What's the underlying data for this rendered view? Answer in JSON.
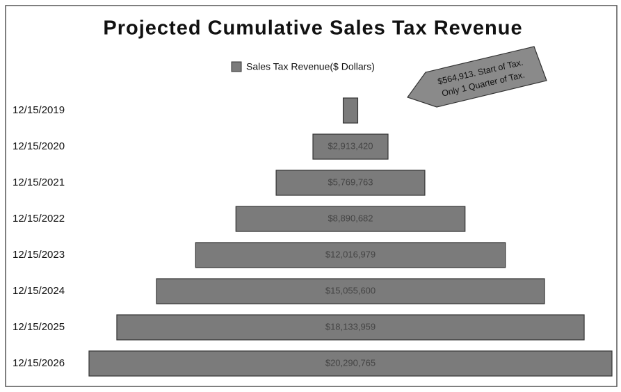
{
  "chart_data": {
    "type": "funnel",
    "title": "Projected Cumulative Sales Tax Revenue",
    "categories": [
      "12/15/2019",
      "12/15/2020",
      "12/15/2021",
      "12/15/2022",
      "12/15/2023",
      "12/15/2024",
      "12/15/2025",
      "12/15/2026"
    ],
    "series": [
      {
        "name": "Sales Tax Revenue($ Dollars)",
        "color": "#7b7b7b",
        "values": [
          564913,
          2913420,
          5769763,
          8890682,
          12016979,
          15055600,
          18133959,
          20290765
        ],
        "value_labels": [
          null,
          "$2,913,420",
          "$5,769,763",
          "$8,890,682",
          "$12,016,979",
          "$15,055,600",
          "$18,133,959",
          "$20,290,765"
        ]
      }
    ],
    "annotation": [
      "$564,913. Start of Tax.",
      "Only 1 Quarter of Tax."
    ]
  }
}
